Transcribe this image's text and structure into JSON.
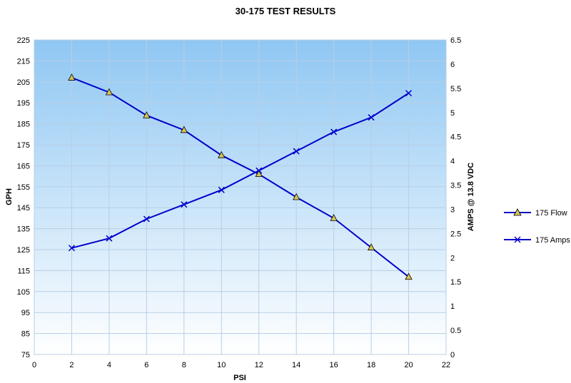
{
  "chart_data": {
    "type": "line",
    "title": "30-175 TEST RESULTS",
    "xlabel": "PSI",
    "ylabel_left": "GPH",
    "ylabel_right": "AMPS @ 13.8 VDC",
    "xlim": [
      0,
      22
    ],
    "ylim_left": [
      75,
      225
    ],
    "ylim_right": [
      0,
      6.5
    ],
    "x_ticks": [
      0,
      2,
      4,
      6,
      8,
      10,
      12,
      14,
      16,
      18,
      20,
      22
    ],
    "y_left_ticks": [
      75,
      85,
      95,
      105,
      115,
      125,
      135,
      145,
      155,
      165,
      175,
      185,
      195,
      205,
      215,
      225
    ],
    "y_right_ticks": [
      "0",
      "0.5",
      "1",
      "1.5",
      "2",
      "2.5",
      "3",
      "3.5",
      "4",
      "4.5",
      "5",
      "5.5",
      "6",
      "6.5"
    ],
    "grid": true,
    "legend_position": "right",
    "series": [
      {
        "name": "175 Flow",
        "axis": "left",
        "marker": "triangle",
        "color": "#0000cc",
        "marker_fill": "#d4c45a",
        "x": [
          2,
          4,
          6,
          8,
          10,
          12,
          14,
          16,
          18,
          20
        ],
        "values": [
          207,
          200,
          189,
          182,
          170,
          161,
          150,
          140,
          126,
          112
        ]
      },
      {
        "name": "175 Amps",
        "axis": "right",
        "marker": "x",
        "color": "#0000cc",
        "x": [
          2,
          4,
          6,
          8,
          10,
          12,
          14,
          16,
          18,
          20
        ],
        "values": [
          2.2,
          2.4,
          2.8,
          3.1,
          3.4,
          3.8,
          4.2,
          4.6,
          4.9,
          5.4
        ]
      }
    ]
  }
}
